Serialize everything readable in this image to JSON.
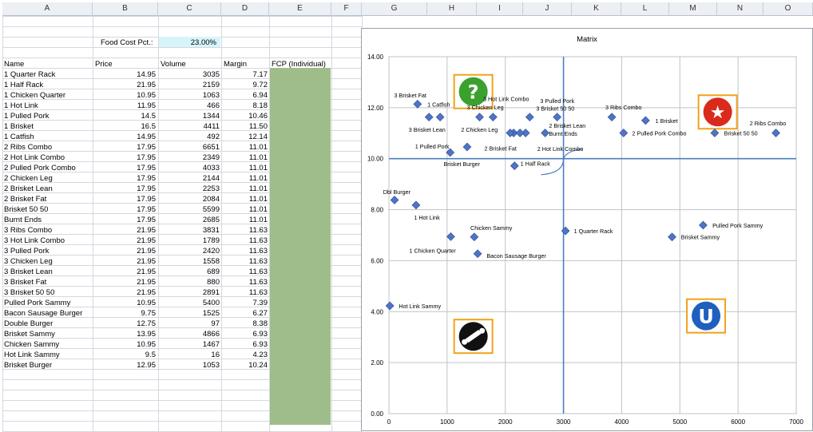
{
  "columns": [
    "A",
    "B",
    "C",
    "D",
    "E",
    "F",
    "G",
    "H",
    "I",
    "J",
    "K",
    "L",
    "M",
    "N",
    "O"
  ],
  "food_cost": {
    "label": "Food Cost Pct.:",
    "value": "23.00%"
  },
  "table": {
    "headers": [
      "Name",
      "Price",
      "Volume",
      "Margin",
      "FCP (Individual)"
    ],
    "rows": [
      [
        "1 Quarter Rack",
        "14.95",
        "3035",
        "7.17"
      ],
      [
        "1 Half Rack",
        "21.95",
        "2159",
        "9.72"
      ],
      [
        "1 Chicken Quarter",
        "10.95",
        "1063",
        "6.94"
      ],
      [
        "1 Hot Link",
        "11.95",
        "466",
        "8.18"
      ],
      [
        "1 Pulled Pork",
        "14.5",
        "1344",
        "10.46"
      ],
      [
        "1 Brisket",
        "16.5",
        "4411",
        "11.50"
      ],
      [
        "1 Catfish",
        "14.95",
        "492",
        "12.14"
      ],
      [
        "2 Ribs Combo",
        "17.95",
        "6651",
        "11.01"
      ],
      [
        "2 Hot Link Combo",
        "17.95",
        "2349",
        "11.01"
      ],
      [
        "2 Pulled Pork Combo",
        "17.95",
        "4033",
        "11.01"
      ],
      [
        "2 Chicken Leg",
        "17.95",
        "2144",
        "11.01"
      ],
      [
        "2 Brisket Lean",
        "17.95",
        "2253",
        "11.01"
      ],
      [
        "2 Brisket Fat",
        "17.95",
        "2084",
        "11.01"
      ],
      [
        "Brisket 50 50",
        "17.95",
        "5599",
        "11.01"
      ],
      [
        "Burnt Ends",
        "17.95",
        "2685",
        "11.01"
      ],
      [
        "3 Ribs Combo",
        "21.95",
        "3831",
        "11.63"
      ],
      [
        "3 Hot Link Combo",
        "21.95",
        "1789",
        "11.63"
      ],
      [
        "3 Pulled Pork",
        "21.95",
        "2420",
        "11.63"
      ],
      [
        "3 Chicken Leg",
        "21.95",
        "1558",
        "11.63"
      ],
      [
        "3 Brisket Lean",
        "21.95",
        "689",
        "11.63"
      ],
      [
        "3 Brisket Fat",
        "21.95",
        "880",
        "11.63"
      ],
      [
        "3 Brisket 50 50",
        "21.95",
        "2891",
        "11.63"
      ],
      [
        "Pulled Pork Sammy",
        "10.95",
        "5400",
        "7.39"
      ],
      [
        "Bacon Sausage Burger",
        "9.75",
        "1525",
        "6.27"
      ],
      [
        "Double Burger",
        "12.75",
        "97",
        "8.38"
      ],
      [
        "Brisket Sammy",
        "13.95",
        "4866",
        "6.93"
      ],
      [
        "Chicken Sammy",
        "10.95",
        "1467",
        "6.93"
      ],
      [
        "Hot Link Sammy",
        "9.5",
        "16",
        "4.23"
      ],
      [
        "Brisket Burger",
        "12.95",
        "1053",
        "10.24"
      ]
    ]
  },
  "colors": {
    "fcp_fill": "#9fbd8a",
    "foodcost_fill": "#d6f5fa",
    "marker": "#4f74c6",
    "quadrant_line": "#4a7fc1",
    "icon_border": "#f0a21a"
  },
  "quadrant_icons": [
    {
      "name": "question-icon",
      "glyph": "?",
      "bg": "#3aa12e",
      "x": 1450,
      "y": 12.6
    },
    {
      "name": "star-icon",
      "glyph": "★",
      "bg": "#d92a1c",
      "x": 5650,
      "y": 11.8
    },
    {
      "name": "bone-icon",
      "glyph": "",
      "bg": "#111111",
      "x": 1450,
      "y": 3.0
    },
    {
      "name": "horseshoe-icon",
      "glyph": "U",
      "bg": "#1f5fbf",
      "x": 5450,
      "y": 3.8
    }
  ],
  "chart_data": {
    "type": "scatter",
    "title": "Matrix",
    "xlim": [
      0,
      7000
    ],
    "ylim": [
      0,
      14
    ],
    "xticks": [
      0,
      1000,
      2000,
      3000,
      4000,
      5000,
      6000,
      7000
    ],
    "yticks": [
      "0.00",
      "2.00",
      "4.00",
      "6.00",
      "8.00",
      "10.00",
      "12.00",
      "14.00"
    ],
    "grid": true,
    "quadrant_x": 3000,
    "quadrant_y": 10,
    "points": [
      {
        "label": "1 Quarter Rack",
        "x": 3035,
        "y": 7.17,
        "lx": 3180,
        "ly": 7.17
      },
      {
        "label": "1 Half Rack",
        "x": 2159,
        "y": 9.72,
        "lx": 2260,
        "ly": 9.82
      },
      {
        "label": "1 Chicken Quarter",
        "x": 1063,
        "y": 6.94,
        "lx": 350,
        "ly": 6.4
      },
      {
        "label": "1 Hot Link",
        "x": 466,
        "y": 8.18,
        "lx": 430,
        "ly": 7.7
      },
      {
        "label": "1 Pulled Pork",
        "x": 1344,
        "y": 10.46,
        "lx": 450,
        "ly": 10.5
      },
      {
        "label": "1 Brisket",
        "x": 4411,
        "y": 11.5,
        "lx": 4580,
        "ly": 11.5
      },
      {
        "label": "1 Catfish",
        "x": 492,
        "y": 12.14,
        "lx": 660,
        "ly": 12.14
      },
      {
        "label": "2 Ribs Combo",
        "x": 6651,
        "y": 11.01,
        "lx": 6200,
        "ly": 11.4
      },
      {
        "label": "2 Hot Link Combo",
        "x": 2349,
        "y": 11.01,
        "lx": 2550,
        "ly": 10.4
      },
      {
        "label": "2 Pulled Pork Combo",
        "x": 4033,
        "y": 11.01,
        "lx": 4180,
        "ly": 11.01
      },
      {
        "label": "2 Chicken Leg",
        "x": 2144,
        "y": 11.01,
        "lx": 1240,
        "ly": 11.15
      },
      {
        "label": "2 Brisket Lean",
        "x": 2253,
        "y": 11.01,
        "lx": 2750,
        "ly": 11.3
      },
      {
        "label": "2 Brisket Fat",
        "x": 2084,
        "y": 11.01,
        "lx": 1640,
        "ly": 10.42
      },
      {
        "label": "Brisket 50 50",
        "x": 5599,
        "y": 11.01,
        "lx": 5760,
        "ly": 11.01
      },
      {
        "label": "Burnt Ends",
        "x": 2685,
        "y": 11.01,
        "lx": 2750,
        "ly": 11.0
      },
      {
        "label": "3 Ribs Combo",
        "x": 3831,
        "y": 11.63,
        "lx": 3720,
        "ly": 12.02
      },
      {
        "label": "3 Hot Link Combo",
        "x": 1789,
        "y": 11.63,
        "lx": 1620,
        "ly": 12.35
      },
      {
        "label": "3 Pulled Pork",
        "x": 2420,
        "y": 11.63,
        "lx": 2600,
        "ly": 12.28
      },
      {
        "label": "3 Chicken Leg",
        "x": 1558,
        "y": 11.63,
        "lx": 1340,
        "ly": 12.02
      },
      {
        "label": "3 Brisket Lean",
        "x": 689,
        "y": 11.63,
        "lx": 340,
        "ly": 11.15
      },
      {
        "label": "3 Brisket Fat",
        "x": 880,
        "y": 11.63,
        "lx": 90,
        "ly": 12.5
      },
      {
        "label": "3 Brisket 50 50",
        "x": 2891,
        "y": 11.63,
        "lx": 2530,
        "ly": 11.98
      },
      {
        "label": "Pulled Pork Sammy",
        "x": 5400,
        "y": 7.39,
        "lx": 5560,
        "ly": 7.39
      },
      {
        "label": "Bacon Sausage Burger",
        "x": 1525,
        "y": 6.27,
        "lx": 1680,
        "ly": 6.2
      },
      {
        "label": "Dbl Burger",
        "x": 97,
        "y": 8.38,
        "lx": -100,
        "ly": 8.7
      },
      {
        "label": "Brisket Sammy",
        "x": 4866,
        "y": 6.93,
        "lx": 5020,
        "ly": 6.93
      },
      {
        "label": "Chicken Sammy",
        "x": 1467,
        "y": 6.93,
        "lx": 1400,
        "ly": 7.3
      },
      {
        "label": "Hot Link Sammy",
        "x": 16,
        "y": 4.23,
        "lx": 170,
        "ly": 4.23
      },
      {
        "label": "Brisket Burger",
        "x": 1053,
        "y": 10.24,
        "lx": 940,
        "ly": 9.8
      }
    ]
  }
}
